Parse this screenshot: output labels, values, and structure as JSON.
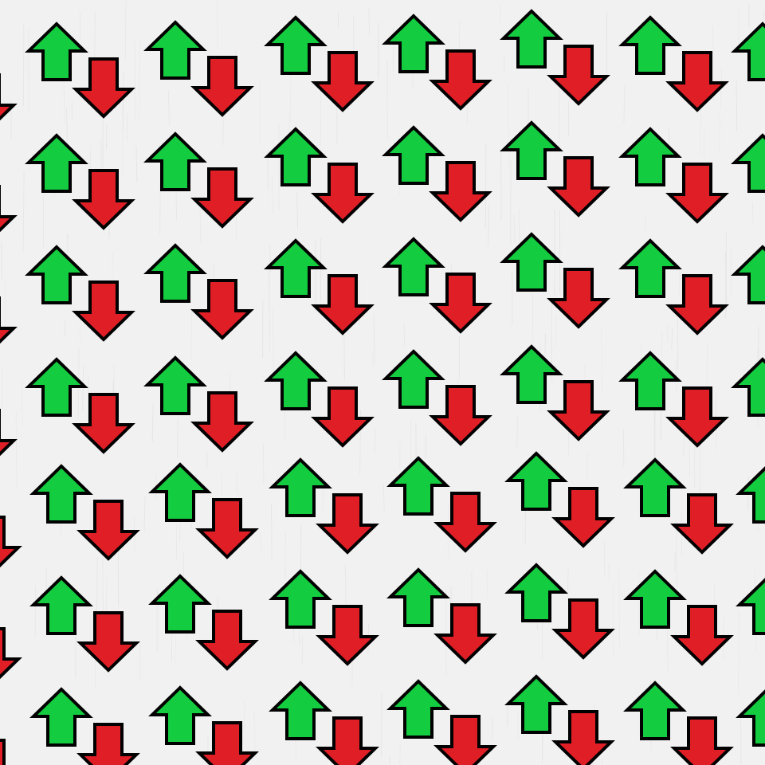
{
  "pattern": {
    "background_color": "#f1f1f1",
    "grain_color": "#e2e2e2",
    "outline_color": "#000000",
    "up_arrow": {
      "icon": "arrow-up-icon",
      "fill": "#14cc3f"
    },
    "down_arrow": {
      "icon": "arrow-down-icon",
      "fill": "#e01e26"
    }
  }
}
